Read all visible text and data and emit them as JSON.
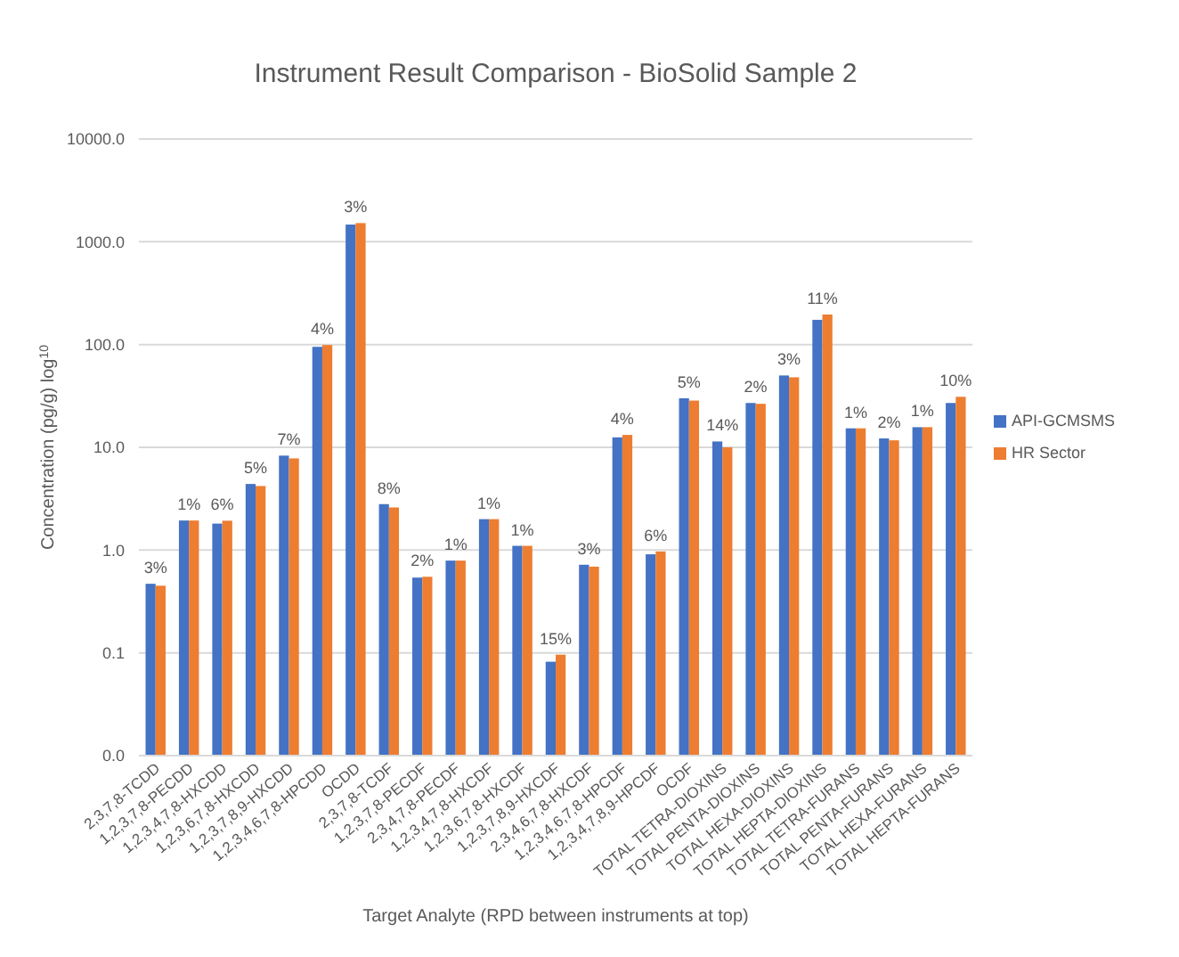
{
  "chart_data": {
    "type": "bar",
    "title": "Instrument Result Comparison - BioSolid Sample 2",
    "xlabel": "Target Analyte (RPD between instruments at top)",
    "ylabel": "Concentration (pg/g) log$^{10}$",
    "categories": [
      "2,3,7,8-TCDD",
      "1,2,3,7,8-PECDD",
      "1,2,3,4,7,8-HXCDD",
      "1,2,3,6,7,8-HXCDD",
      "1,2,3,7,8,9-HXCDD",
      "1,2,3,4,6,7,8-HPCDD",
      "OCDD",
      "2,3,7,8-TCDF",
      "1,2,3,7,8-PECDF",
      "2,3,4,7,8-PECDF",
      "1,2,3,4,7,8-HXCDF",
      "1,2,3,6,7,8-HXCDF",
      "1,2,3,7,8,9-HXCDF",
      "2,3,4,6,7,8-HXCDF",
      "1,2,3,4,6,7,8-HPCDF",
      "1,2,3,4,7,8,9-HPCDF",
      "OCDF",
      "TOTAL TETRA-DIOXINS",
      "TOTAL PENTA-DIOXINS",
      "TOTAL HEXA-DIOXINS",
      "TOTAL HEPTA-DIOXINS",
      "TOTAL TETRA-FURANS",
      "TOTAL PENTA-FURANS",
      "TOTAL HEXA-FURANS",
      "TOTAL HEPTA-FURANS"
    ],
    "series": [
      {
        "name": "API-GCMSMS",
        "color": "#4472c4",
        "values": [
          0.47,
          1.94,
          1.81,
          4.4,
          8.3,
          95,
          1470,
          2.8,
          0.54,
          0.79,
          2.0,
          1.1,
          0.082,
          0.72,
          12.5,
          0.91,
          30,
          11.4,
          27,
          50,
          174,
          15.3,
          12.2,
          15.7,
          27
        ]
      },
      {
        "name": "HR Sector",
        "color": "#ed7d31",
        "values": [
          0.45,
          1.94,
          1.93,
          4.2,
          7.8,
          99,
          1520,
          2.6,
          0.55,
          0.79,
          2.0,
          1.1,
          0.096,
          0.69,
          13.2,
          0.97,
          28.5,
          10.0,
          26.5,
          48,
          196,
          15.3,
          11.7,
          15.7,
          31
        ]
      }
    ],
    "log": "y",
    "ylim": [
      0.01,
      10000
    ],
    "yticks": [
      {
        "value": 0.01,
        "label": "0.0"
      },
      {
        "value": 0.1,
        "label": "0.1"
      },
      {
        "value": 1,
        "label": "1.0"
      },
      {
        "value": 10,
        "label": "10.0"
      },
      {
        "value": 100,
        "label": "100.0"
      },
      {
        "value": 1000,
        "label": "1000.0"
      },
      {
        "value": 10000,
        "label": "10000.0"
      }
    ],
    "grid": "y",
    "legend": "right",
    "annotations": [
      {
        "text": "3%",
        "x": "2,3,7,8-TCDD",
        "y": 0.47
      },
      {
        "text": "1%",
        "x": "1,2,3,7,8-PECDD",
        "y": 1.94
      },
      {
        "text": "6%",
        "x": "1,2,3,4,7,8-HXCDD",
        "y": 1.93
      },
      {
        "text": "5%",
        "x": "1,2,3,6,7,8-HXCDD",
        "y": 4.4
      },
      {
        "text": "7%",
        "x": "1,2,3,7,8,9-HXCDD",
        "y": 8.3
      },
      {
        "text": "4%",
        "x": "1,2,3,4,6,7,8-HPCDD",
        "y": 99
      },
      {
        "text": "3%",
        "x": "OCDD",
        "y": 1520
      },
      {
        "text": "8%",
        "x": "2,3,7,8-TCDF",
        "y": 2.8
      },
      {
        "text": "2%",
        "x": "1,2,3,7,8-PECDF",
        "y": 0.55
      },
      {
        "text": "1%",
        "x": "2,3,4,7,8-PECDF",
        "y": 0.79
      },
      {
        "text": "1%",
        "x": "1,2,3,4,7,8-HXCDF",
        "y": 2.0
      },
      {
        "text": "1%",
        "x": "1,2,3,6,7,8-HXCDF",
        "y": 1.1
      },
      {
        "text": "15%",
        "x": "1,2,3,7,8,9-HXCDF",
        "y": 0.096
      },
      {
        "text": "3%",
        "x": "2,3,4,6,7,8-HXCDF",
        "y": 0.72
      },
      {
        "text": "4%",
        "x": "1,2,3,4,6,7,8-HPCDF",
        "y": 13.2
      },
      {
        "text": "6%",
        "x": "1,2,3,4,7,8,9-HPCDF",
        "y": 0.97
      },
      {
        "text": "5%",
        "x": "OCDF",
        "y": 30
      },
      {
        "text": "14%",
        "x": "TOTAL TETRA-DIOXINS",
        "y": 11.4
      },
      {
        "text": "2%",
        "x": "TOTAL PENTA-DIOXINS",
        "y": 27
      },
      {
        "text": "3%",
        "x": "TOTAL HEXA-DIOXINS",
        "y": 50
      },
      {
        "text": "11%",
        "x": "TOTAL HEPTA-DIOXINS",
        "y": 196
      },
      {
        "text": "1%",
        "x": "TOTAL TETRA-FURANS",
        "y": 15.3
      },
      {
        "text": "2%",
        "x": "TOTAL PENTA-FURANS",
        "y": 12.2
      },
      {
        "text": "1%",
        "x": "TOTAL HEXA-FURANS",
        "y": 15.7
      },
      {
        "text": "10%",
        "x": "TOTAL HEPTA-FURANS",
        "y": 31
      }
    ]
  }
}
